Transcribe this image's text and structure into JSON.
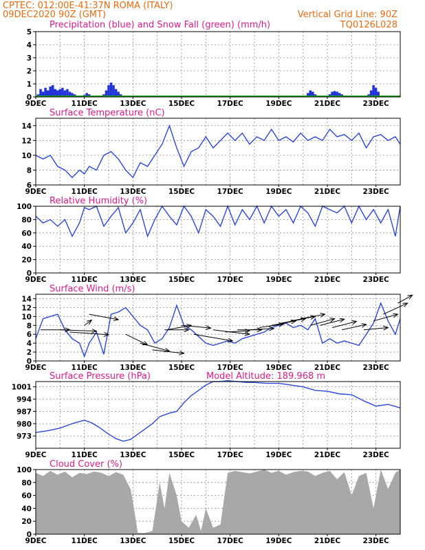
{
  "header": {
    "line1_left": "CPTEC:   012:00E-41:37N   ROMA (ITALY)",
    "line2_left": "09DEC2020 90Z (GMT)",
    "line2_right": "Vertical Grid Line: 90Z",
    "line3_right": "TQ0126L028"
  },
  "colors": {
    "precip": "#1f33d6",
    "snow": "#16a016",
    "line": "#2b45d8",
    "cloud": "#a8a8a8",
    "arrow": "#000000",
    "header": "#e86a10",
    "title": "#d81b8a"
  },
  "chart_data": [
    {
      "id": "precip",
      "type": "bar",
      "title": "Precipitation (blue) and Snow Fall (green) (mm/h)",
      "ylim": [
        0,
        5
      ],
      "yticks": [
        "0",
        "1",
        "2",
        "3",
        "4",
        "5"
      ],
      "xticks": [
        "9DEC",
        "11DEC",
        "13DEC",
        "15DEC",
        "17DEC",
        "19DEC",
        "21DEC",
        "23DEC"
      ],
      "x_range_days": [
        9,
        24
      ],
      "series": [
        {
          "name": "Precipitation",
          "points": [
            [
              9.1,
              0.2
            ],
            [
              9.2,
              0.6
            ],
            [
              9.3,
              0.4
            ],
            [
              9.4,
              0.7
            ],
            [
              9.5,
              0.5
            ],
            [
              9.6,
              0.8
            ],
            [
              9.7,
              0.9
            ],
            [
              9.8,
              0.6
            ],
            [
              9.9,
              0.5
            ],
            [
              10.0,
              0.6
            ],
            [
              10.1,
              0.7
            ],
            [
              10.2,
              0.5
            ],
            [
              10.3,
              0.6
            ],
            [
              10.4,
              0.4
            ],
            [
              10.5,
              0.3
            ],
            [
              10.6,
              0.2
            ],
            [
              10.7,
              0.1
            ],
            [
              11.0,
              0.15
            ],
            [
              11.1,
              0.3
            ],
            [
              11.2,
              0.2
            ],
            [
              11.3,
              0.1
            ],
            [
              11.8,
              0.2
            ],
            [
              11.9,
              0.5
            ],
            [
              12.0,
              0.9
            ],
            [
              12.1,
              1.1
            ],
            [
              12.2,
              0.9
            ],
            [
              12.3,
              0.6
            ],
            [
              12.4,
              0.4
            ],
            [
              12.5,
              0.2
            ],
            [
              12.6,
              0.1
            ],
            [
              19.9,
              0.05
            ],
            [
              20.2,
              0.3
            ],
            [
              20.3,
              0.5
            ],
            [
              20.4,
              0.4
            ],
            [
              20.5,
              0.2
            ],
            [
              21.1,
              0.2
            ],
            [
              21.2,
              0.4
            ],
            [
              21.3,
              0.45
            ],
            [
              21.4,
              0.4
            ],
            [
              21.5,
              0.3
            ],
            [
              21.6,
              0.2
            ],
            [
              21.7,
              0.1
            ],
            [
              22.7,
              0.2
            ],
            [
              22.8,
              0.5
            ],
            [
              22.9,
              0.9
            ],
            [
              23.0,
              0.7
            ],
            [
              23.1,
              0.4
            ],
            [
              23.2,
              0.1
            ]
          ]
        },
        {
          "name": "Snow Fall",
          "points": []
        }
      ]
    },
    {
      "id": "temperature",
      "type": "line",
      "title": "Surface Temperature (nC)",
      "ylim": [
        6,
        15
      ],
      "yticks": [
        "6",
        "8",
        "10",
        "12",
        "14"
      ],
      "xticks": [
        "9DEC",
        "11DEC",
        "13DEC",
        "15DEC",
        "17DEC",
        "19DEC",
        "21DEC",
        "23DEC"
      ],
      "x_range_days": [
        9,
        24
      ],
      "x": [
        9.0,
        9.3,
        9.6,
        9.9,
        10.2,
        10.5,
        10.8,
        11.0,
        11.2,
        11.5,
        11.8,
        12.1,
        12.4,
        12.7,
        13.0,
        13.3,
        13.6,
        13.9,
        14.2,
        14.5,
        14.8,
        15.1,
        15.4,
        15.7,
        16.0,
        16.3,
        16.6,
        16.9,
        17.2,
        17.5,
        17.8,
        18.1,
        18.4,
        18.7,
        19.0,
        19.3,
        19.6,
        19.9,
        20.2,
        20.5,
        20.8,
        21.1,
        21.4,
        21.7,
        22.0,
        22.3,
        22.6,
        22.9,
        23.2,
        23.5,
        23.8,
        24.0
      ],
      "y": [
        10.0,
        9.5,
        10.0,
        8.5,
        8.0,
        7.0,
        8.0,
        7.5,
        8.5,
        8.0,
        10.0,
        10.5,
        9.5,
        8.0,
        7.0,
        9.0,
        8.5,
        10.0,
        11.5,
        14.0,
        11.0,
        8.5,
        10.5,
        11.0,
        12.5,
        11.0,
        12.0,
        13.0,
        12.0,
        13.0,
        11.5,
        12.5,
        12.0,
        13.5,
        12.0,
        12.5,
        11.8,
        13.0,
        12.0,
        12.5,
        12.0,
        13.5,
        12.5,
        12.8,
        12.0,
        13.0,
        11.0,
        12.5,
        12.8,
        12.0,
        12.5,
        11.5
      ]
    },
    {
      "id": "humidity",
      "type": "line",
      "title": "Relative Humidity (%)",
      "ylim": [
        0,
        100
      ],
      "yticks": [
        "0",
        "20",
        "40",
        "60",
        "80",
        "100"
      ],
      "xticks": [
        "9DEC",
        "11DEC",
        "13DEC",
        "15DEC",
        "17DEC",
        "19DEC",
        "21DEC",
        "23DEC"
      ],
      "x_range_days": [
        9,
        24
      ],
      "x": [
        9.0,
        9.3,
        9.6,
        9.9,
        10.2,
        10.5,
        10.8,
        11.0,
        11.2,
        11.5,
        11.8,
        12.1,
        12.4,
        12.7,
        13.0,
        13.3,
        13.6,
        13.9,
        14.2,
        14.5,
        14.8,
        15.1,
        15.4,
        15.7,
        16.0,
        16.3,
        16.6,
        16.9,
        17.2,
        17.5,
        17.8,
        18.1,
        18.4,
        18.7,
        19.0,
        19.3,
        19.6,
        19.9,
        20.2,
        20.5,
        20.8,
        21.1,
        21.4,
        21.7,
        22.0,
        22.3,
        22.6,
        22.9,
        23.2,
        23.5,
        23.8,
        24.0
      ],
      "y": [
        85,
        75,
        80,
        70,
        80,
        55,
        75,
        98,
        95,
        100,
        70,
        85,
        98,
        60,
        75,
        95,
        55,
        80,
        100,
        85,
        72,
        100,
        85,
        60,
        95,
        85,
        70,
        100,
        72,
        95,
        80,
        100,
        75,
        100,
        85,
        95,
        75,
        100,
        90,
        70,
        100,
        95,
        90,
        100,
        75,
        100,
        80,
        95,
        75,
        95,
        55,
        100
      ]
    },
    {
      "id": "wind",
      "type": "line",
      "title": "Surface Wind (m/s)",
      "ylim": [
        0,
        15
      ],
      "yticks": [
        "0",
        "2",
        "4",
        "6",
        "8",
        "10",
        "12",
        "14"
      ],
      "xticks": [
        "9DEC",
        "11DEC",
        "13DEC",
        "15DEC",
        "17DEC",
        "19DEC",
        "21DEC",
        "23DEC"
      ],
      "x_range_days": [
        9,
        24
      ],
      "x": [
        9.0,
        9.3,
        9.6,
        9.9,
        10.2,
        10.5,
        10.8,
        11.0,
        11.2,
        11.5,
        11.8,
        12.1,
        12.4,
        12.7,
        13.0,
        13.3,
        13.6,
        13.9,
        14.2,
        14.5,
        14.8,
        15.1,
        15.4,
        15.7,
        16.0,
        16.3,
        16.6,
        16.9,
        17.2,
        17.5,
        17.8,
        18.1,
        18.4,
        18.7,
        19.0,
        19.3,
        19.6,
        19.9,
        20.2,
        20.5,
        20.8,
        21.1,
        21.4,
        21.7,
        22.0,
        22.3,
        22.6,
        22.9,
        23.2,
        23.5,
        23.8,
        24.0
      ],
      "y": [
        5.0,
        9.5,
        10.0,
        10.5,
        7.0,
        5.0,
        4.0,
        1.0,
        4.0,
        6.5,
        1.5,
        10.5,
        11.0,
        12.0,
        10.0,
        8.0,
        7.0,
        4.0,
        5.0,
        7.5,
        12.5,
        8.0,
        7.0,
        5.5,
        4.0,
        3.5,
        4.0,
        4.5,
        4.0,
        5.0,
        5.5,
        6.0,
        6.5,
        7.5,
        8.0,
        8.5,
        7.5,
        8.0,
        7.0,
        9.5,
        4.0,
        5.0,
        4.0,
        4.5,
        4.0,
        3.5,
        6.0,
        8.5,
        13.0,
        9.0,
        6.0,
        9.5
      ],
      "arrows": [
        [
          9.2,
          7,
          1.2,
          0
        ],
        [
          10.0,
          7,
          1.5,
          -0.3
        ],
        [
          10.4,
          6.5,
          1.6,
          -0.6
        ],
        [
          11.0,
          8,
          0.3,
          1.2
        ],
        [
          11.2,
          10.5,
          1.2,
          -1.2
        ],
        [
          12.7,
          6,
          0.9,
          -2.4
        ],
        [
          13.3,
          4,
          1.2,
          -1.8
        ],
        [
          13.8,
          2.5,
          1.3,
          -0.8
        ],
        [
          14.3,
          7,
          1.0,
          0
        ],
        [
          14.4,
          7,
          1.0,
          1.0
        ],
        [
          15.0,
          8,
          1.2,
          -0.6
        ],
        [
          15.5,
          6,
          1.6,
          -1.5
        ],
        [
          16.3,
          7,
          1.5,
          -1.0
        ],
        [
          16.8,
          6.5,
          1.0,
          0.3
        ],
        [
          17.3,
          7,
          1.0,
          0
        ],
        [
          17.8,
          7,
          1.0,
          0.3
        ],
        [
          18.2,
          7.5,
          1.0,
          0.8
        ],
        [
          18.7,
          8,
          1.0,
          1.0
        ],
        [
          19.1,
          8.5,
          1.0,
          1.0
        ],
        [
          19.5,
          9,
          1.0,
          1.0
        ],
        [
          19.9,
          9.5,
          1.0,
          1.0
        ],
        [
          20.3,
          8,
          1.0,
          1.5
        ],
        [
          20.7,
          8,
          1.0,
          1.4
        ],
        [
          21.2,
          7.5,
          1.0,
          1.4
        ],
        [
          21.6,
          7,
          1.0,
          1.2
        ],
        [
          22.5,
          7,
          1.0,
          0.5
        ],
        [
          22.9,
          9,
          1.0,
          1.5
        ],
        [
          23.3,
          10.5,
          1.0,
          2.5
        ],
        [
          23.9,
          13,
          0.6,
          1.8
        ]
      ]
    },
    {
      "id": "pressure",
      "type": "line",
      "title": "Surface Pressure (hPa)",
      "annotation": "Model Altitude: 189.968  m",
      "ylim": [
        966,
        1004
      ],
      "yticks": [
        "973",
        "980",
        "987",
        "994",
        "1001"
      ],
      "xticks": [
        "9DEC",
        "11DEC",
        "13DEC",
        "15DEC",
        "17DEC",
        "19DEC",
        "21DEC",
        "23DEC"
      ],
      "x_range_days": [
        9,
        24
      ],
      "x": [
        9.0,
        9.5,
        10.0,
        10.5,
        11.0,
        11.3,
        11.6,
        12.0,
        12.3,
        12.6,
        12.9,
        13.2,
        13.5,
        13.8,
        14.1,
        14.5,
        14.8,
        15.1,
        15.4,
        15.7,
        16.0,
        16.3,
        16.6,
        16.9,
        17.3,
        17.7,
        18.0,
        18.5,
        19.0,
        19.5,
        20.0,
        20.5,
        21.0,
        21.5,
        22.0,
        22.5,
        23.0,
        23.5,
        24.0
      ],
      "y": [
        975,
        976,
        977.5,
        980,
        982,
        980.5,
        978,
        974,
        971.5,
        970,
        971,
        974,
        977,
        980,
        984,
        986,
        987,
        992,
        996,
        999,
        1002,
        1004,
        1004,
        1004.5,
        1004,
        1003.5,
        1003.5,
        1003,
        1003,
        1002,
        1001,
        999,
        998.5,
        997,
        996.5,
        993,
        990,
        991,
        989
      ]
    },
    {
      "id": "cloud",
      "type": "area",
      "title": "Cloud Cover (%)",
      "ylim": [
        0,
        100
      ],
      "yticks": [
        "0",
        "20",
        "40",
        "60",
        "80",
        "100"
      ],
      "xticks": [
        "9DEC",
        "11DEC",
        "13DEC",
        "15DEC",
        "17DEC",
        "19DEC",
        "21DEC",
        "23DEC"
      ],
      "x_range_days": [
        9,
        24
      ],
      "x": [
        9.0,
        9.3,
        9.6,
        9.9,
        10.2,
        10.5,
        10.8,
        11.1,
        11.4,
        11.7,
        12.0,
        12.3,
        12.6,
        12.9,
        13.0,
        13.2,
        13.5,
        13.8,
        14.1,
        14.3,
        14.5,
        14.8,
        15.0,
        15.3,
        15.6,
        15.8,
        16.0,
        16.3,
        16.6,
        16.9,
        17.2,
        17.5,
        17.8,
        18.1,
        18.4,
        18.7,
        19.0,
        19.3,
        19.6,
        19.9,
        20.2,
        20.5,
        20.8,
        21.1,
        21.4,
        21.7,
        22.0,
        22.3,
        22.6,
        22.9,
        23.2,
        23.5,
        23.8,
        24.0
      ],
      "y": [
        95,
        90,
        98,
        92,
        97,
        88,
        95,
        93,
        97,
        95,
        90,
        96,
        92,
        70,
        50,
        2,
        2,
        5,
        80,
        40,
        95,
        60,
        20,
        10,
        30,
        5,
        40,
        10,
        15,
        95,
        98,
        96,
        94,
        97,
        100,
        95,
        98,
        92,
        96,
        98,
        97,
        90,
        95,
        98,
        85,
        96,
        60,
        90,
        95,
        40,
        100,
        70,
        95,
        100
      ]
    }
  ]
}
